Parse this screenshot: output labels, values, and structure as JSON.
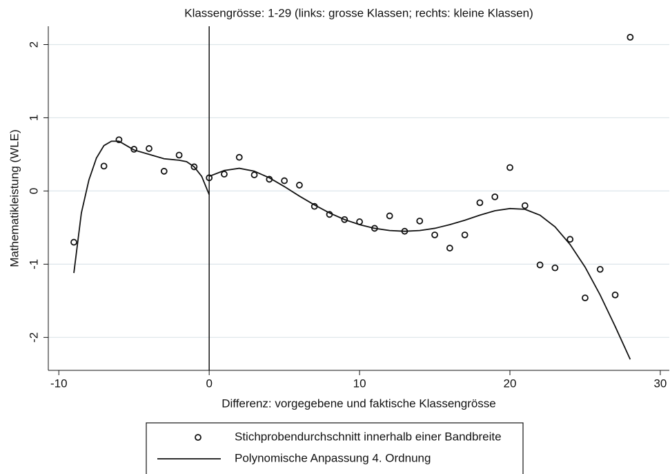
{
  "chart_data": {
    "type": "scatter",
    "title": "Klassengrösse: 1-29 (links: grosse Klassen; rechts: kleine Klassen)",
    "x_label": "Differenz: vorgegebene und faktische Klassengrösse",
    "y_label": "Mathematikleistung (WLE)",
    "xlim": [
      -10.7,
      30.6
    ],
    "ylim": [
      -2.45,
      2.25
    ],
    "xticks": [
      -10,
      0,
      10,
      20,
      30
    ],
    "yticks": [
      -2,
      -1,
      0,
      1,
      2
    ],
    "grid": true,
    "xline": 0,
    "series": [
      {
        "name": "Stichprobendurchschnitt innerhalb einer Bandbreite",
        "style": "points",
        "color": "#111111",
        "x": [
          -9,
          -7,
          -6,
          -5,
          -4,
          -3,
          -2,
          -1,
          0,
          1,
          2,
          3,
          4,
          5,
          6,
          7,
          8,
          9,
          10,
          11,
          12,
          13,
          14,
          15,
          16,
          17,
          18,
          19,
          20,
          21,
          22,
          23,
          24,
          25,
          26,
          27,
          28
        ],
        "values": [
          -0.7,
          0.34,
          0.7,
          0.57,
          0.58,
          0.27,
          0.49,
          0.33,
          0.18,
          0.23,
          0.46,
          0.22,
          0.16,
          0.14,
          0.08,
          -0.21,
          -0.32,
          -0.39,
          -0.42,
          -0.51,
          -0.34,
          -0.55,
          -0.41,
          -0.6,
          -0.78,
          -0.6,
          -0.16,
          -0.08,
          0.32,
          -0.2,
          -1.01,
          -1.05,
          -0.66,
          -1.46,
          -1.07,
          -1.42,
          2.1
        ]
      },
      {
        "name": "Polynomische Anpassung 4. Ordnung",
        "style": "line",
        "color": "#111111",
        "x": [
          -9,
          -8.5,
          -8,
          -7.5,
          -7,
          -6.5,
          -6,
          -5.5,
          -5,
          -4,
          -3,
          -2,
          -1.5,
          -1,
          -0.5,
          0,
          null,
          0,
          1,
          2,
          3,
          4,
          5,
          6,
          7,
          8,
          9,
          10,
          11,
          12,
          13,
          14,
          15,
          16,
          17,
          18,
          19,
          20,
          21,
          22,
          23,
          24,
          25,
          26,
          27,
          28
        ],
        "values": [
          -1.12,
          -0.3,
          0.15,
          0.45,
          0.62,
          0.68,
          0.68,
          0.62,
          0.56,
          0.5,
          0.44,
          0.42,
          0.4,
          0.33,
          0.2,
          -0.05,
          null,
          0.2,
          0.28,
          0.31,
          0.27,
          0.18,
          0.06,
          -0.07,
          -0.19,
          -0.3,
          -0.39,
          -0.46,
          -0.51,
          -0.54,
          -0.55,
          -0.54,
          -0.51,
          -0.46,
          -0.4,
          -0.33,
          -0.27,
          -0.24,
          -0.25,
          -0.33,
          -0.49,
          -0.73,
          -1.04,
          -1.42,
          -1.85,
          -2.3
        ]
      }
    ]
  }
}
